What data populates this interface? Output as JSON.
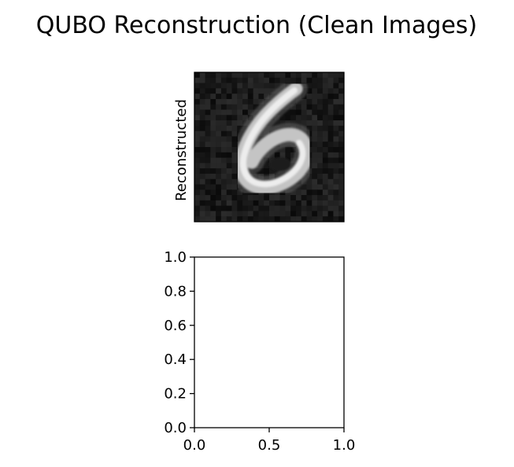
{
  "figure": {
    "title": "QUBO Reconstruction (Clean Images)"
  },
  "chart_data": [
    {
      "type": "heatmap",
      "ylabel": "Reconstructed",
      "grid": false,
      "colormap": "gray",
      "description_rows": 28,
      "grid_size": [
        28,
        28
      ],
      "content": "grayscale reconstruction of a handwritten digit 6"
    },
    {
      "type": "scatter",
      "series": [],
      "xlim": [
        0.0,
        1.0
      ],
      "ylim": [
        0.0,
        1.0
      ],
      "xticks": [
        "0.0",
        "0.5",
        "1.0"
      ],
      "yticks": [
        "0.0",
        "0.2",
        "0.4",
        "0.6",
        "0.8",
        "1.0"
      ],
      "grid": false
    }
  ]
}
